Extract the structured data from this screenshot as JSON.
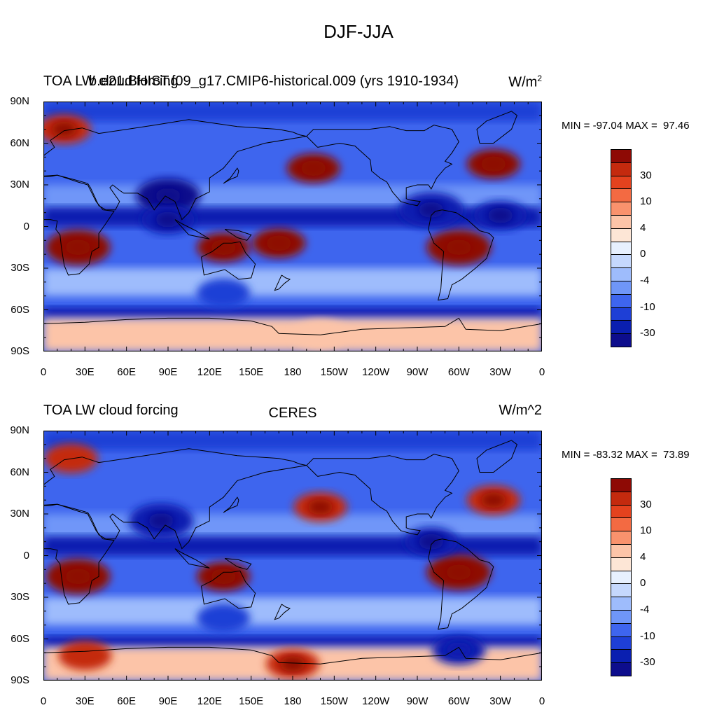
{
  "title": "DJF-JJA",
  "panels": [
    {
      "left_title": "TOA LW cloud forcing",
      "case_title": "b.e21.BHIST.f09_g17.CMIP6-historical.009 (yrs 1910-1934)",
      "center_title": "",
      "units_text": "W/m",
      "units_sup": "2",
      "minmax": "MIN = -97.04 MAX =  97.46"
    },
    {
      "left_title": "TOA LW cloud forcing",
      "case_title": "",
      "center_title": "CERES",
      "units_text": "W/m^2",
      "units_sup": "",
      "minmax": "MIN = -83.32 MAX =  73.89"
    }
  ],
  "colorbar": {
    "colors": [
      "#0d0d8c",
      "#0a1fb0",
      "#1e3fd6",
      "#3e65ee",
      "#6f96f8",
      "#9ebcfc",
      "#c5d8fd",
      "#e7f0fe",
      "#fde6d6",
      "#fcc4a8",
      "#f9926d",
      "#f36a42",
      "#e4421e",
      "#c42a0e",
      "#8e0a05"
    ],
    "labels": [
      "30",
      "10",
      "4",
      "0",
      "-4",
      "-10",
      "-30"
    ]
  },
  "axes": {
    "lat_ticks": [
      "90N",
      "60N",
      "30N",
      "0",
      "30S",
      "60S",
      "90S"
    ],
    "lon_ticks": [
      "0",
      "30E",
      "60E",
      "90E",
      "120E",
      "150E",
      "180",
      "150W",
      "120W",
      "90W",
      "60W",
      "30W",
      "0"
    ]
  },
  "chart_data": [
    {
      "type": "heatmap",
      "title": "DJF-JJA",
      "left_title": "TOA LW cloud forcing",
      "subtitle": "b.e21.BHIST.f09_g17.CMIP6-historical.009 (yrs 1910-1934)",
      "units": "W/m2",
      "min": -97.04,
      "max": 97.46,
      "xlim": [
        0,
        360
      ],
      "ylim": [
        -90,
        90
      ],
      "contour_levels": [
        -50,
        -40,
        -30,
        -20,
        -10,
        -6,
        -4,
        -2,
        0,
        2,
        4,
        6,
        10,
        20,
        30,
        40,
        50
      ],
      "approx_features": [
        {
          "lon": 25,
          "lat": -15,
          "value": 50
        },
        {
          "lon": 130,
          "lat": -15,
          "value": 35
        },
        {
          "lon": 170,
          "lat": -12,
          "value": 40
        },
        {
          "lon": 300,
          "lat": -15,
          "value": 55
        },
        {
          "lon": 195,
          "lat": 42,
          "value": 35
        },
        {
          "lon": 325,
          "lat": 45,
          "value": 35
        },
        {
          "lon": 15,
          "lat": 70,
          "value": 30
        },
        {
          "lon": 90,
          "lat": 22,
          "value": -50
        },
        {
          "lon": 90,
          "lat": 5,
          "value": -40
        },
        {
          "lon": 280,
          "lat": 12,
          "value": -45
        },
        {
          "lon": 330,
          "lat": 8,
          "value": -40
        },
        {
          "lon": 130,
          "lat": -48,
          "value": -25
        },
        {
          "lon": 200,
          "lat": -78,
          "value": 4
        }
      ]
    },
    {
      "type": "heatmap",
      "title": "CERES",
      "left_title": "TOA LW cloud forcing",
      "units": "W/m^2",
      "min": -83.32,
      "max": 73.89,
      "xlim": [
        0,
        360
      ],
      "ylim": [
        -90,
        90
      ],
      "contour_levels": [
        -50,
        -40,
        -30,
        -20,
        -10,
        -6,
        -4,
        -2,
        0,
        2,
        4,
        6,
        10,
        20,
        30,
        40,
        50
      ],
      "approx_features": [
        {
          "lon": 25,
          "lat": -15,
          "value": 45
        },
        {
          "lon": 130,
          "lat": -15,
          "value": 40
        },
        {
          "lon": 300,
          "lat": -12,
          "value": 50
        },
        {
          "lon": 200,
          "lat": 35,
          "value": 30
        },
        {
          "lon": 325,
          "lat": 40,
          "value": 30
        },
        {
          "lon": 20,
          "lat": 70,
          "value": 25
        },
        {
          "lon": 85,
          "lat": 25,
          "value": -45
        },
        {
          "lon": 280,
          "lat": 10,
          "value": -40
        },
        {
          "lon": 130,
          "lat": -45,
          "value": -25
        },
        {
          "lon": 300,
          "lat": -68,
          "value": -30
        },
        {
          "lon": 180,
          "lat": -78,
          "value": 30
        },
        {
          "lon": 30,
          "lat": -72,
          "value": 25
        }
      ]
    }
  ]
}
